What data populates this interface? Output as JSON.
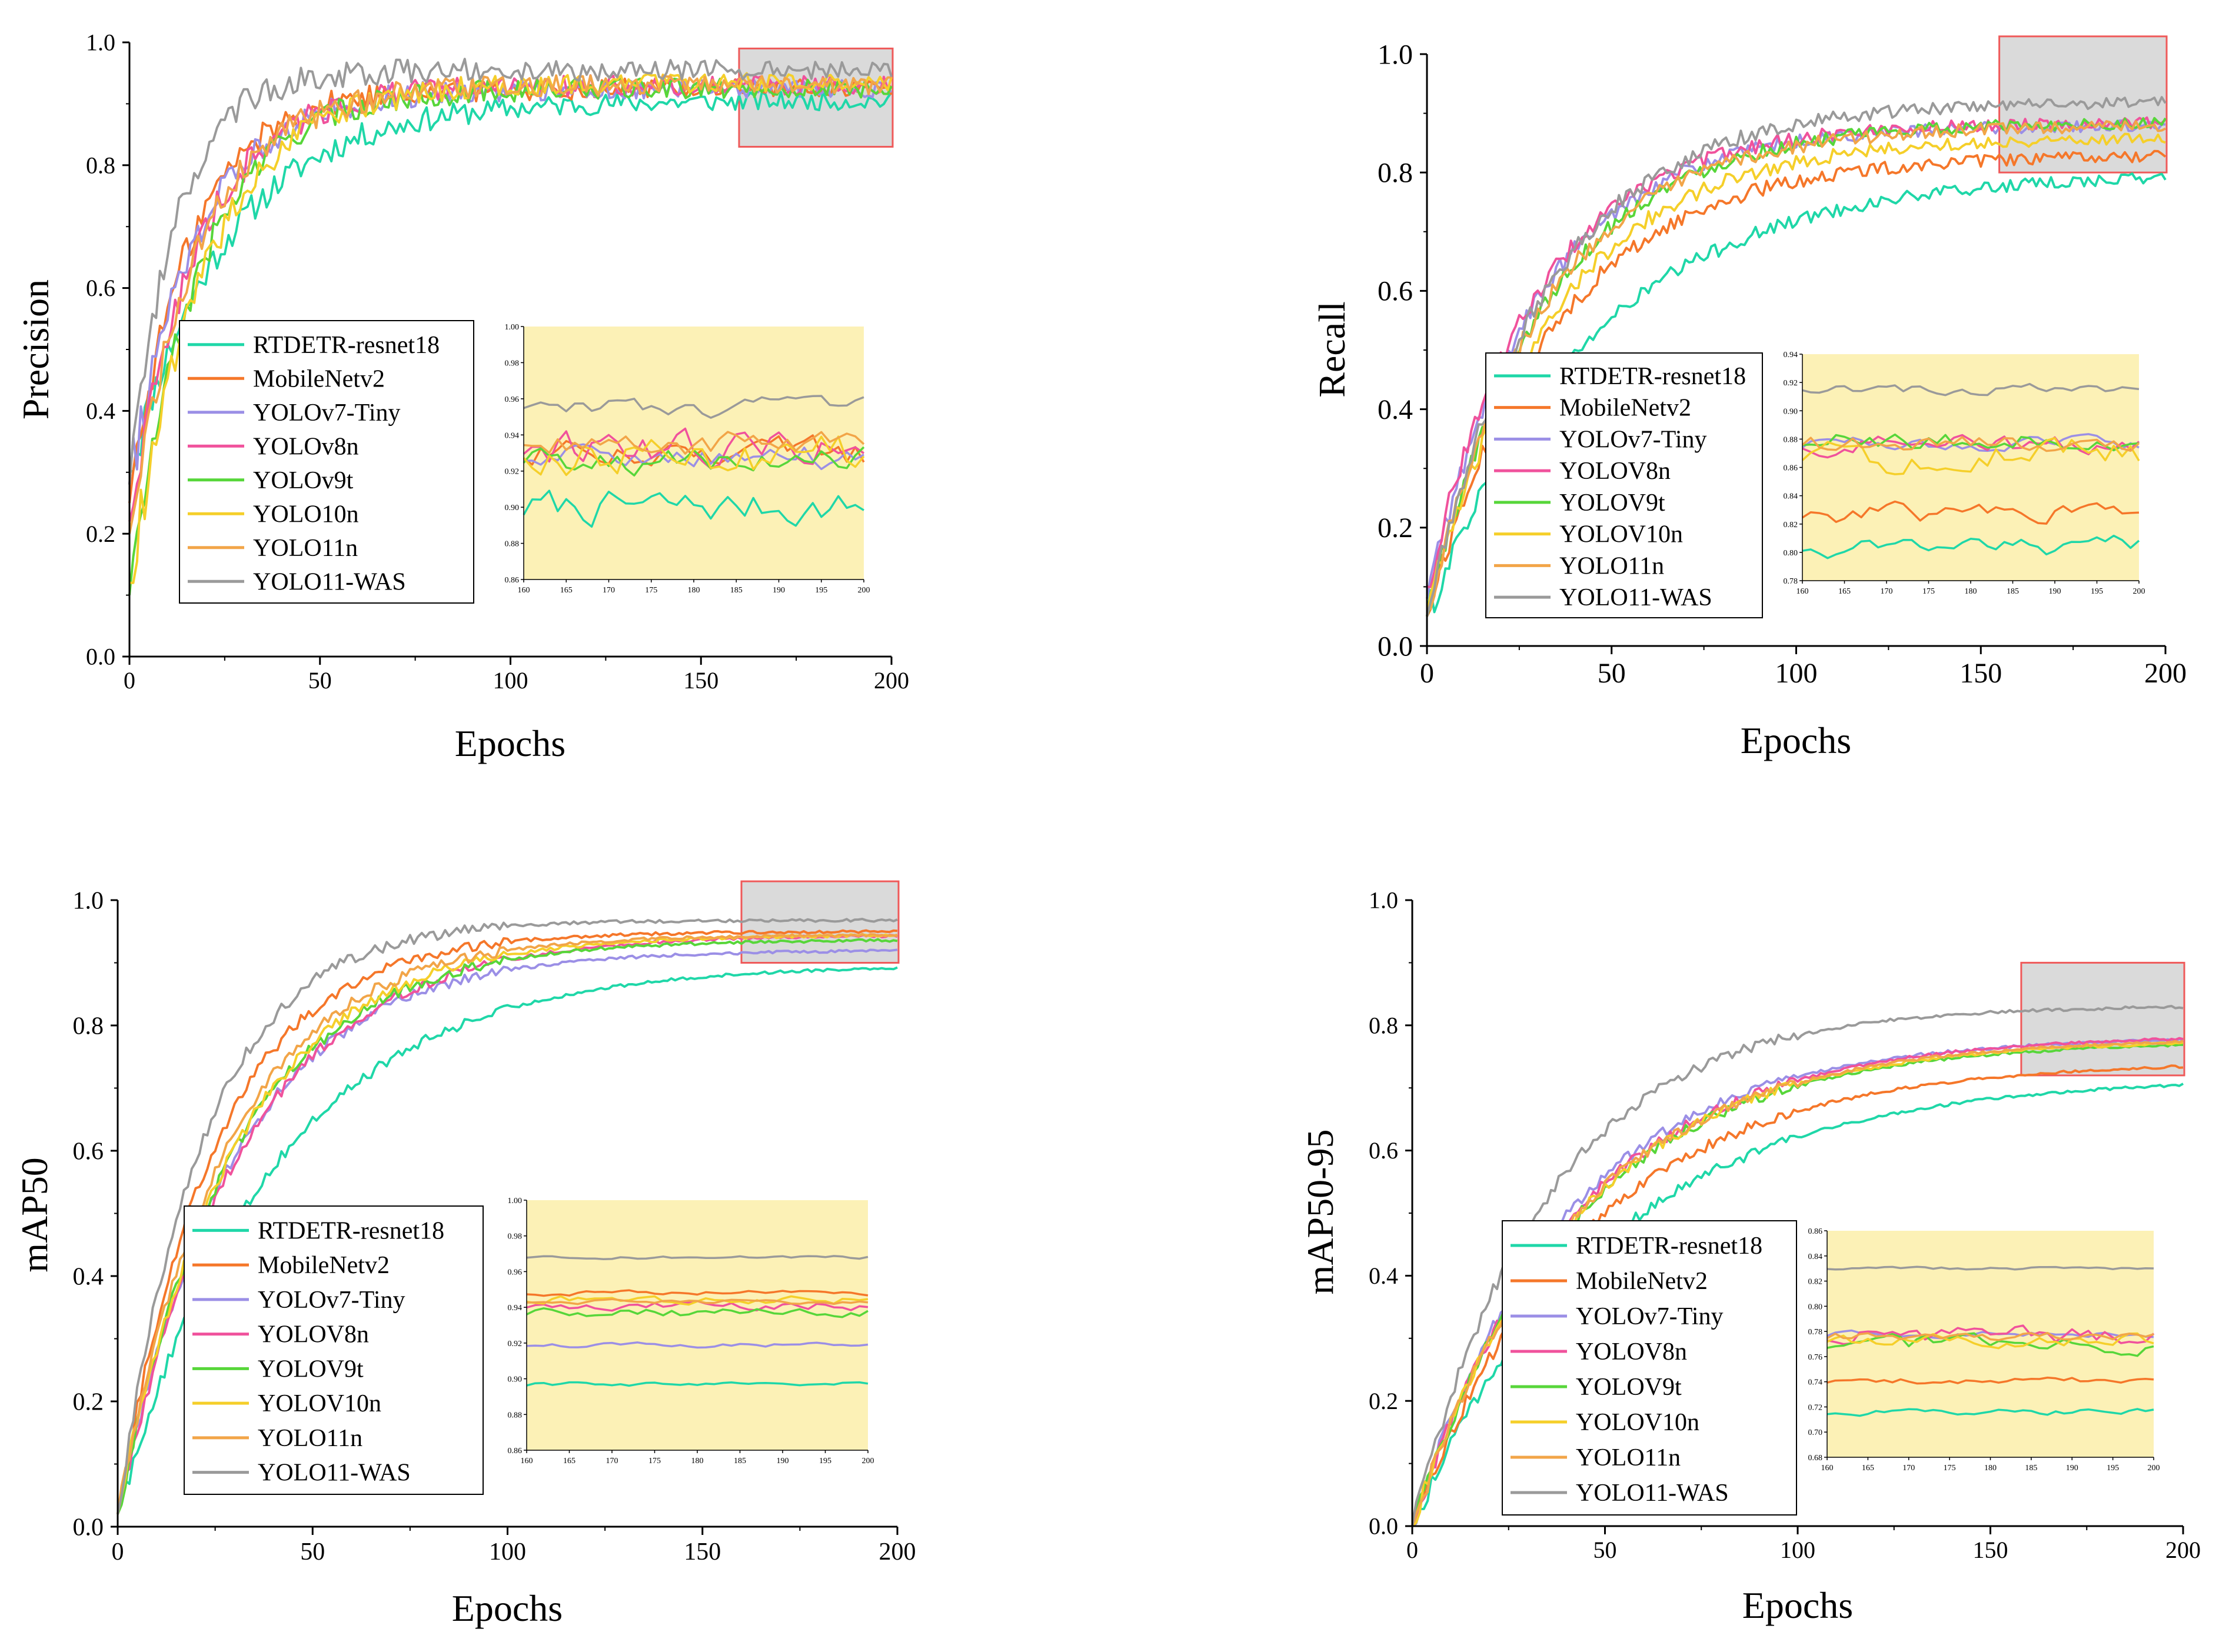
{
  "colors": {
    "RTDETR": "#1fd7a8",
    "MobileNet": "#f5772a",
    "YOLOv7": "#9b8fe6",
    "YOLOv8": "#f0529c",
    "YOLOv9": "#57d63a",
    "YOLO10": "#f5cf2a",
    "YOLO11n": "#f2a548",
    "WAS": "#9a9a9a",
    "inset_bg": "#fcf1b6",
    "zoom_box_fill": "#dadada",
    "zoom_box_stroke": "#ef5a5a"
  },
  "chart_data": [
    {
      "type": "line",
      "id": "precision",
      "xlabel": "Epochs",
      "ylabel": "Precision",
      "xlim": [
        0,
        200
      ],
      "ylim": [
        0.0,
        1.0
      ],
      "xticks": [
        "0",
        "50",
        "100",
        "150",
        "200"
      ],
      "yticks": [
        "0.0",
        "0.2",
        "0.4",
        "0.6",
        "0.8",
        "1.0"
      ],
      "legend": [
        "RTDETR-resnet18",
        "MobileNetv2",
        "YOLOv7-Tiny",
        "YOLOv8n",
        "YOLOv9t",
        "YOLO10n",
        "YOLO11n",
        "YOLO11-WAS"
      ],
      "series_keys": [
        "RTDETR",
        "MobileNet",
        "YOLOv7",
        "YOLOv8",
        "YOLOv9",
        "YOLO10",
        "YOLO11n",
        "WAS"
      ],
      "final_values": [
        0.905,
        0.925,
        0.925,
        0.93,
        0.925,
        0.935,
        0.93,
        0.955
      ],
      "start_values": [
        0.3,
        0.25,
        0.28,
        0.22,
        0.1,
        0.12,
        0.2,
        0.28
      ],
      "rates": [
        26,
        16,
        18,
        18,
        18,
        20,
        18,
        12
      ],
      "zoom_xlim": [
        160,
        200
      ],
      "inset": {
        "xlim": [
          160,
          200
        ],
        "ylim": [
          0.86,
          1.0
        ],
        "xticks": [
          "160",
          "165",
          "170",
          "175",
          "180",
          "185",
          "190",
          "195",
          "200"
        ],
        "yticks": [
          "0.86",
          "0.88",
          "0.90",
          "0.92",
          "0.94",
          "0.96",
          "0.98",
          "1.00"
        ],
        "levels": [
          0.9,
          0.93,
          0.928,
          0.932,
          0.926,
          0.929,
          0.935,
          0.955
        ],
        "noise": [
          0.008,
          0.007,
          0.006,
          0.008,
          0.006,
          0.01,
          0.006,
          0.004
        ]
      }
    },
    {
      "type": "line",
      "id": "recall",
      "xlabel": "Epochs",
      "ylabel": "Recall",
      "xlim": [
        0,
        200
      ],
      "ylim": [
        0.0,
        1.0
      ],
      "xticks": [
        "0",
        "50",
        "100",
        "150",
        "200"
      ],
      "yticks": [
        "0.0",
        "0.2",
        "0.4",
        "0.6",
        "0.8",
        "1.0"
      ],
      "legend": [
        "RTDETR-resnet18",
        "MobileNetv2",
        "YOLOv7-Tiny",
        "YOLOV8n",
        "YOLOV9t",
        "YOLOV10n",
        "YOLO11n",
        "YOLO11-WAS"
      ],
      "series_keys": [
        "RTDETR",
        "MobileNet",
        "YOLOv7",
        "YOLOv8",
        "YOLOv9",
        "YOLO10",
        "YOLO11n",
        "WAS"
      ],
      "final_values": [
        0.8,
        0.83,
        0.88,
        0.885,
        0.885,
        0.86,
        0.88,
        0.92
      ],
      "start_values": [
        0.05,
        0.05,
        0.08,
        0.1,
        0.05,
        0.05,
        0.06,
        0.05
      ],
      "rates": [
        45,
        35,
        30,
        30,
        32,
        34,
        32,
        32
      ],
      "zoom_xlim": [
        155,
        200
      ],
      "inset": {
        "xlim": [
          160,
          200
        ],
        "ylim": [
          0.78,
          0.94
        ],
        "xticks": [
          "160",
          "165",
          "170",
          "175",
          "180",
          "185",
          "190",
          "195",
          "200"
        ],
        "yticks": [
          "0.78",
          "0.80",
          "0.82",
          "0.84",
          "0.86",
          "0.88",
          "0.90",
          "0.92",
          "0.94"
        ],
        "levels": [
          0.805,
          0.828,
          0.876,
          0.876,
          0.878,
          0.868,
          0.877,
          0.915
        ],
        "noise": [
          0.006,
          0.006,
          0.004,
          0.006,
          0.006,
          0.01,
          0.005,
          0.003
        ]
      }
    },
    {
      "type": "line",
      "id": "map50",
      "xlabel": "Epochs",
      "ylabel": "mAP50",
      "xlim": [
        0,
        200
      ],
      "ylim": [
        0.0,
        1.0
      ],
      "xticks": [
        "0",
        "50",
        "100",
        "150",
        "200"
      ],
      "yticks": [
        "0.0",
        "0.2",
        "0.4",
        "0.6",
        "0.8",
        "1.0"
      ],
      "legend": [
        "RTDETR-resnet18",
        "MobileNetv2",
        "YOLOv7-Tiny",
        "YOLOV8n",
        "YOLOV9t",
        "YOLOV10n",
        "YOLO11n",
        "YOLO11-WAS"
      ],
      "series_keys": [
        "RTDETR",
        "MobileNet",
        "YOLOv7",
        "YOLOv8",
        "YOLOv9",
        "YOLO10",
        "YOLO11n",
        "WAS"
      ],
      "final_values": [
        0.898,
        0.95,
        0.92,
        0.945,
        0.937,
        0.945,
        0.945,
        0.968
      ],
      "start_values": [
        0.02,
        0.02,
        0.02,
        0.02,
        0.02,
        0.02,
        0.02,
        0.02
      ],
      "rates": [
        40,
        25,
        30,
        32,
        30,
        30,
        28,
        22
      ],
      "zoom_xlim": [
        160,
        200
      ],
      "inset": {
        "xlim": [
          160,
          200
        ],
        "ylim": [
          0.86,
          1.0
        ],
        "xticks": [
          "160",
          "165",
          "170",
          "175",
          "180",
          "185",
          "190",
          "195",
          "200"
        ],
        "yticks": [
          "0.86",
          "0.88",
          "0.90",
          "0.92",
          "0.94",
          "0.96",
          "0.98",
          "1.00"
        ],
        "levels": [
          0.897,
          0.948,
          0.919,
          0.941,
          0.937,
          0.944,
          0.943,
          0.968
        ],
        "noise": [
          0.001,
          0.001,
          0.001,
          0.002,
          0.002,
          0.002,
          0.001,
          0.0007
        ]
      }
    },
    {
      "type": "line",
      "id": "map5095",
      "xlabel": "Epochs",
      "ylabel": "mAP50-95",
      "xlim": [
        0,
        200
      ],
      "ylim": [
        0.0,
        1.0
      ],
      "xticks": [
        "0",
        "50",
        "100",
        "150",
        "200"
      ],
      "yticks": [
        "0.0",
        "0.2",
        "0.4",
        "0.6",
        "0.8",
        "1.0"
      ],
      "legend": [
        "RTDETR-resnet18",
        "MobileNetv2",
        "YOLOv7-Tiny",
        "YOLOV8n",
        "YOLOV9t",
        "YOLOV10n",
        "YOLO11n",
        "YOLO11-WAS"
      ],
      "series_keys": [
        "RTDETR",
        "MobileNet",
        "YOLOv7",
        "YOLOv8",
        "YOLOv9",
        "YOLO10",
        "YOLO11n",
        "WAS"
      ],
      "final_values": [
        0.718,
        0.743,
        0.782,
        0.785,
        0.775,
        0.778,
        0.78,
        0.832
      ],
      "start_values": [
        0.0,
        0.0,
        0.0,
        0.0,
        0.0,
        0.0,
        0.0,
        0.0
      ],
      "rates": [
        50,
        45,
        40,
        42,
        42,
        42,
        42,
        35
      ],
      "zoom_xlim": [
        158,
        200
      ],
      "inset": {
        "xlim": [
          160,
          200
        ],
        "ylim": [
          0.68,
          0.86
        ],
        "xticks": [
          "160",
          "165",
          "170",
          "175",
          "180",
          "185",
          "190",
          "195",
          "200"
        ],
        "yticks": [
          "0.68",
          "0.70",
          "0.72",
          "0.74",
          "0.76",
          "0.78",
          "0.80",
          "0.82",
          "0.84",
          "0.86"
        ],
        "levels": [
          0.716,
          0.741,
          0.778,
          0.777,
          0.77,
          0.774,
          0.776,
          0.83
        ],
        "noise": [
          0.002,
          0.002,
          0.002,
          0.006,
          0.005,
          0.004,
          0.003,
          0.001
        ]
      }
    }
  ]
}
